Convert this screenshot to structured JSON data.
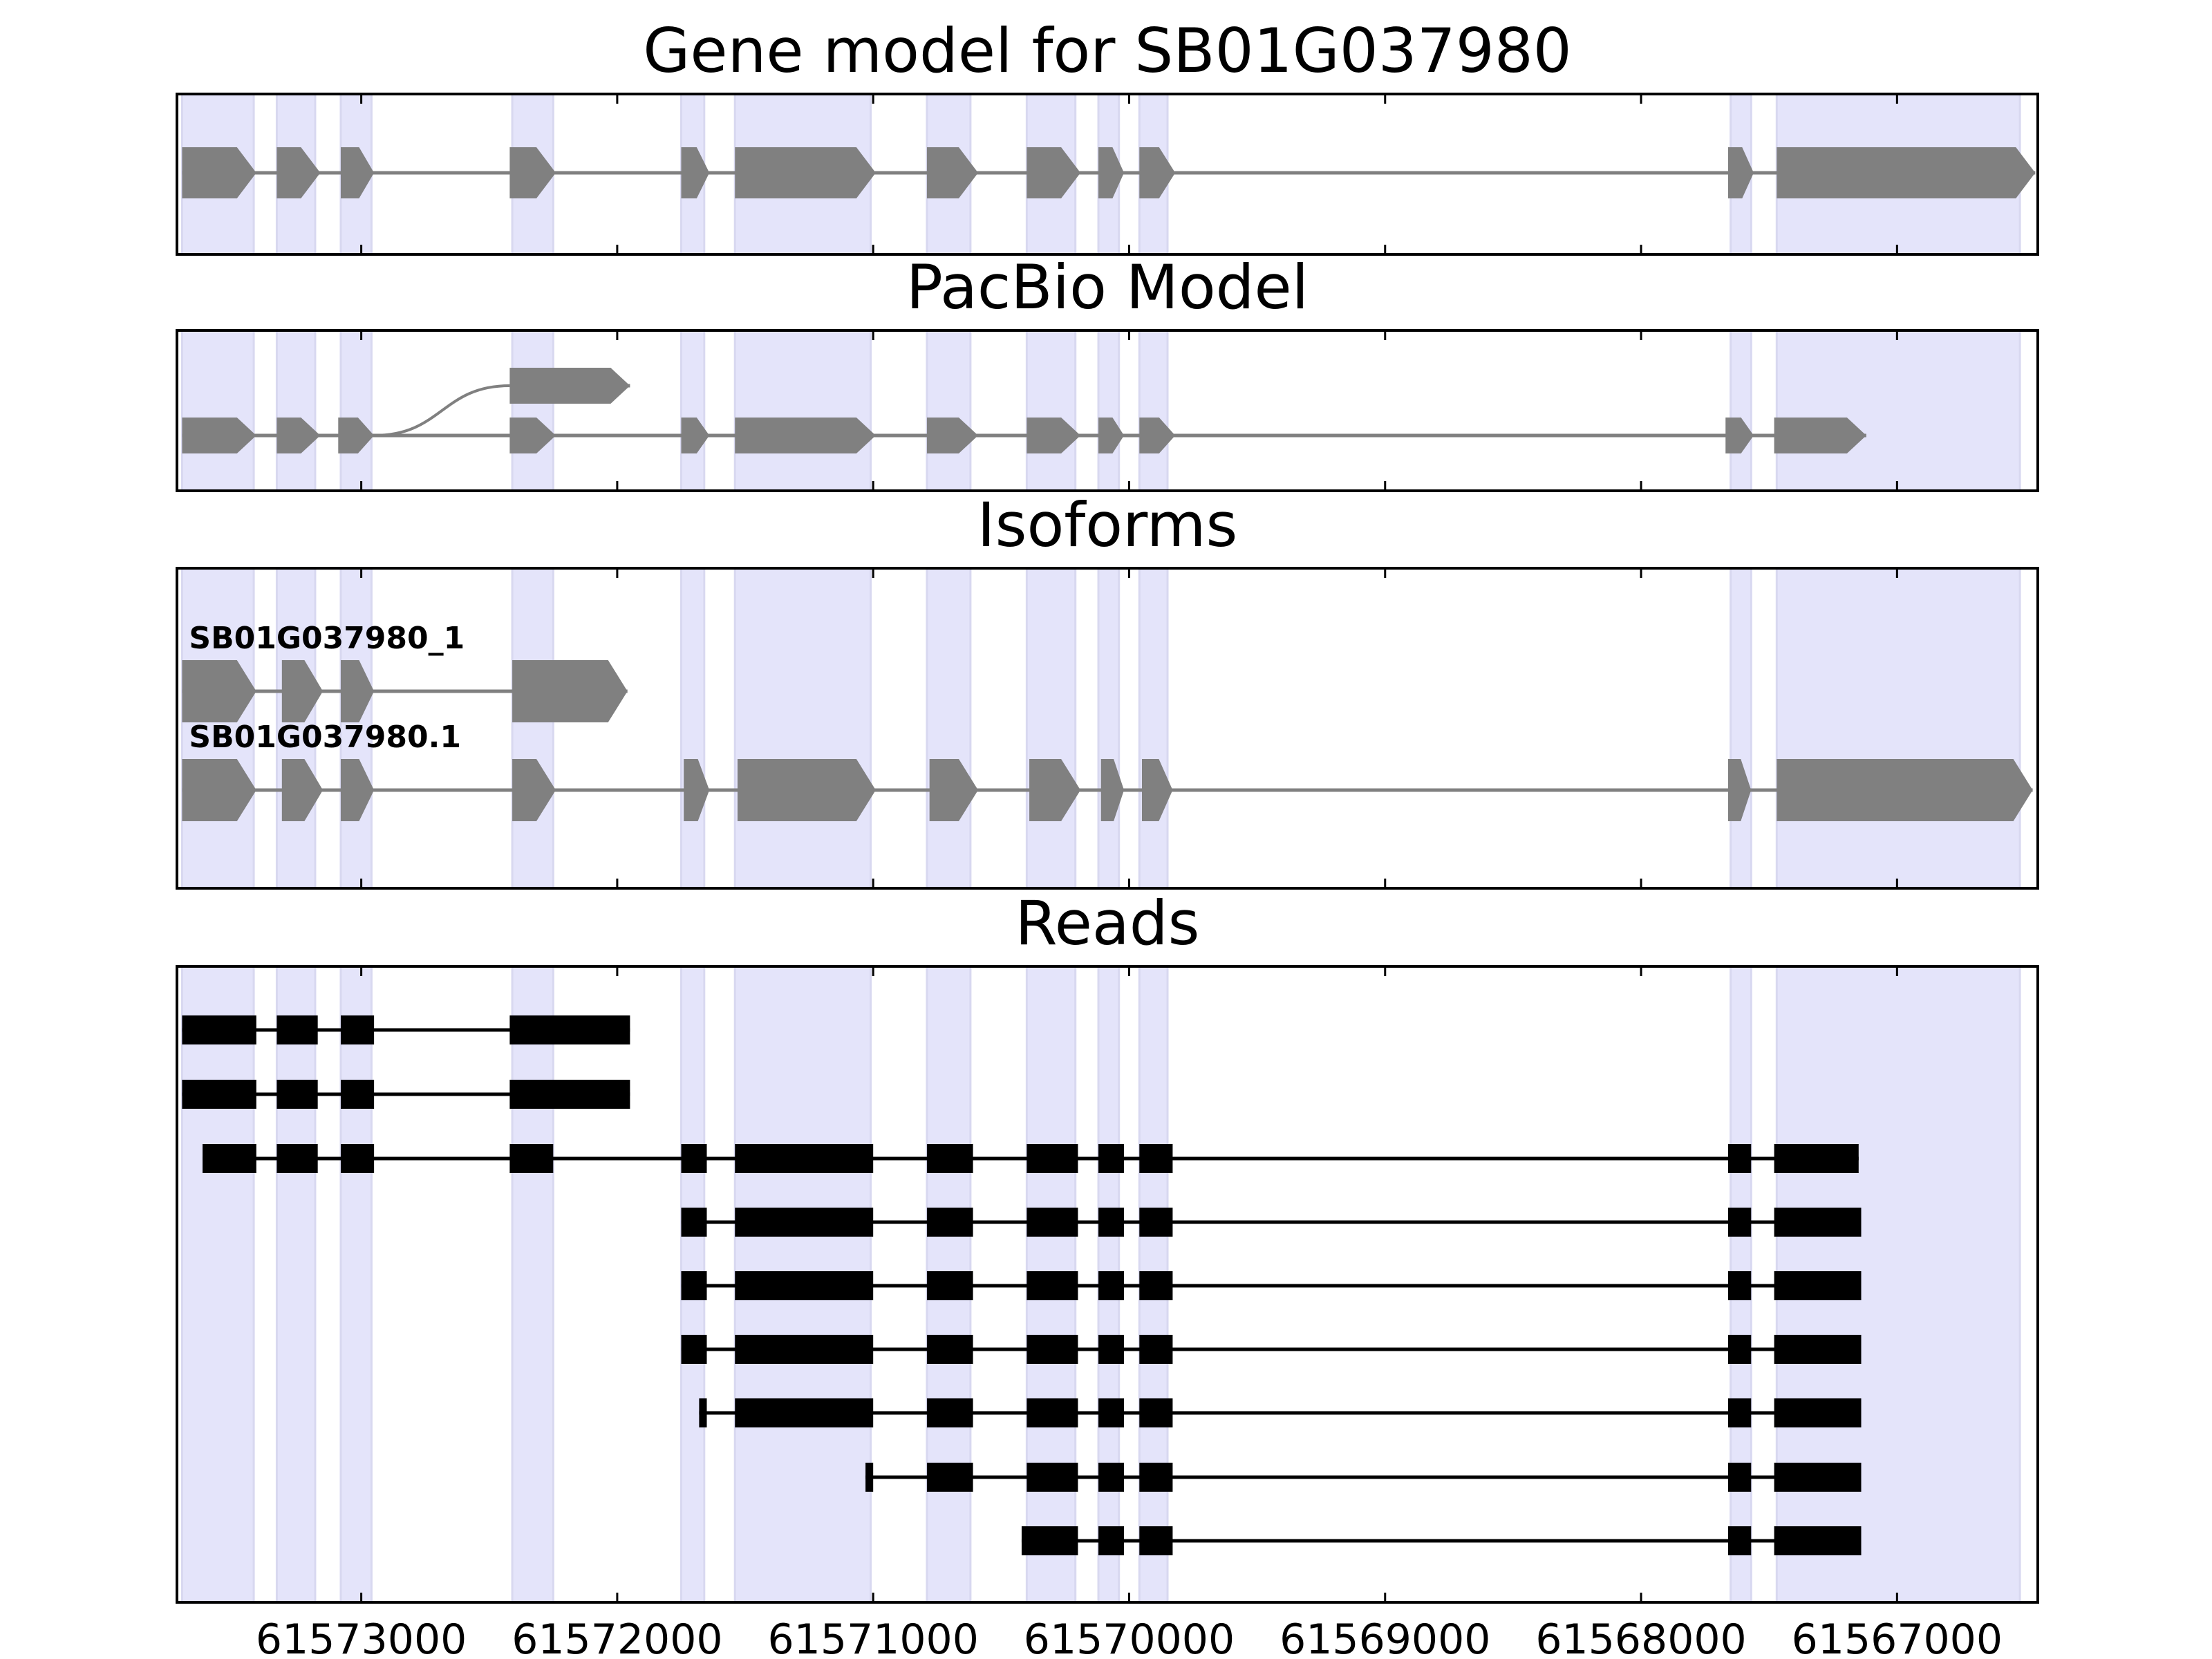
{
  "colors": {
    "exon_shade": "#e4e4fa",
    "exon_shade_edge": "#d8d8f0",
    "gene_model": "#808080",
    "read": "#000000",
    "axis": "#000000"
  },
  "chart_data": {
    "type": "gene-structure",
    "x_axis": {
      "orientation": "reversed",
      "xlim": [
        61573720,
        61566450
      ],
      "ticks": [
        61573000,
        61572000,
        61571000,
        61570000,
        61569000,
        61568000,
        61567000
      ],
      "tick_labels": [
        "61573000",
        "61572000",
        "61571000",
        "61570000",
        "61569000",
        "61568000",
        "61567000"
      ]
    },
    "shaded_exon_regions": [
      [
        61573700,
        61573420
      ],
      [
        61573330,
        61573180
      ],
      [
        61573080,
        61572960
      ],
      [
        61572410,
        61572250
      ],
      [
        61571750,
        61571660
      ],
      [
        61571540,
        61571010
      ],
      [
        61570790,
        61570620
      ],
      [
        61570400,
        61570210
      ],
      [
        61570120,
        61570040
      ],
      [
        61569960,
        61569850
      ],
      [
        61567650,
        61567570
      ],
      [
        61567470,
        61566520
      ]
    ],
    "panels": [
      {
        "title": "Gene model for SB01G037980",
        "kind": "model",
        "tracks": [
          {
            "label": "",
            "row": 0,
            "exons": [
              [
                61573700,
                61573410
              ],
              [
                61573330,
                61573160
              ],
              [
                61573080,
                61572950
              ],
              [
                61572420,
                61572240
              ],
              [
                61571750,
                61571640
              ],
              [
                61571540,
                61570990
              ],
              [
                61570790,
                61570590
              ],
              [
                61570400,
                61570190
              ],
              [
                61570120,
                61570020
              ],
              [
                61569960,
                61569820
              ],
              [
                61567660,
                61567560
              ],
              [
                61567470,
                61566460
              ]
            ]
          }
        ],
        "connectors": []
      },
      {
        "title": "PacBio Model",
        "kind": "model",
        "tracks": [
          {
            "label": "",
            "row": 0,
            "exons": [
              [
                61573700,
                61573410
              ],
              [
                61573330,
                61573160
              ],
              [
                61573090,
                61572950
              ],
              [
                61572420,
                61572240
              ],
              [
                61571750,
                61571640
              ],
              [
                61571540,
                61570990
              ],
              [
                61570790,
                61570590
              ],
              [
                61570400,
                61570190
              ],
              [
                61570120,
                61570020
              ],
              [
                61569960,
                61569820
              ],
              [
                61567670,
                61567560
              ],
              [
                61567480,
                61567120
              ]
            ]
          },
          {
            "label": "",
            "row": 1,
            "exons": [
              [
                61572420,
                61571950
              ]
            ]
          }
        ],
        "connectors": [
          {
            "from": 61572950,
            "to": 61572420,
            "from_row": 0,
            "to_row": 1
          }
        ]
      },
      {
        "title": "Isoforms",
        "kind": "model",
        "tracks": [
          {
            "label": "SB01G037980_1",
            "row": 1,
            "exons": [
              [
                61573700,
                61573410
              ],
              [
                61573310,
                61573150
              ],
              [
                61573080,
                61572950
              ],
              [
                61572410,
                61571960
              ]
            ]
          },
          {
            "label": "SB01G037980.1",
            "row": 0,
            "exons": [
              [
                61573700,
                61573410
              ],
              [
                61573310,
                61573150
              ],
              [
                61573080,
                61572950
              ],
              [
                61572410,
                61572240
              ],
              [
                61571740,
                61571640
              ],
              [
                61571530,
                61570990
              ],
              [
                61570780,
                61570590
              ],
              [
                61570390,
                61570190
              ],
              [
                61570110,
                61570020
              ],
              [
                61569950,
                61569830
              ],
              [
                61567660,
                61567570
              ],
              [
                61567470,
                61566470
              ]
            ]
          }
        ],
        "connectors": []
      },
      {
        "title": "Reads",
        "kind": "reads",
        "tracks": [
          {
            "row": 0,
            "exons": [
              [
                61573700,
                61573410
              ],
              [
                61573330,
                61573170
              ],
              [
                61573080,
                61572950
              ],
              [
                61572420,
                61571950
              ]
            ]
          },
          {
            "row": 1,
            "exons": [
              [
                61573700,
                61573410
              ],
              [
                61573330,
                61573170
              ],
              [
                61573080,
                61572950
              ],
              [
                61572420,
                61571950
              ]
            ]
          },
          {
            "row": 2,
            "exons": [
              [
                61573620,
                61573410
              ],
              [
                61573330,
                61573170
              ],
              [
                61573080,
                61572950
              ],
              [
                61572420,
                61572250
              ],
              [
                61571750,
                61571650
              ],
              [
                61571540,
                61571000
              ],
              [
                61570790,
                61570610
              ],
              [
                61570400,
                61570200
              ],
              [
                61570120,
                61570020
              ],
              [
                61569960,
                61569830
              ],
              [
                61567660,
                61567570
              ],
              [
                61567480,
                61567150
              ]
            ]
          },
          {
            "row": 3,
            "exons": [
              [
                61571750,
                61571650
              ],
              [
                61571540,
                61571000
              ],
              [
                61570790,
                61570610
              ],
              [
                61570400,
                61570200
              ],
              [
                61570120,
                61570020
              ],
              [
                61569960,
                61569830
              ],
              [
                61567660,
                61567570
              ],
              [
                61567480,
                61567140
              ]
            ]
          },
          {
            "row": 4,
            "exons": [
              [
                61571750,
                61571650
              ],
              [
                61571540,
                61571000
              ],
              [
                61570790,
                61570610
              ],
              [
                61570400,
                61570200
              ],
              [
                61570120,
                61570020
              ],
              [
                61569960,
                61569830
              ],
              [
                61567660,
                61567570
              ],
              [
                61567480,
                61567140
              ]
            ]
          },
          {
            "row": 5,
            "exons": [
              [
                61571750,
                61571650
              ],
              [
                61571540,
                61571000
              ],
              [
                61570790,
                61570610
              ],
              [
                61570400,
                61570200
              ],
              [
                61570120,
                61570020
              ],
              [
                61569960,
                61569830
              ],
              [
                61567660,
                61567570
              ],
              [
                61567480,
                61567140
              ]
            ]
          },
          {
            "row": 6,
            "exons": [
              [
                61571680,
                61571650
              ],
              [
                61571540,
                61571000
              ],
              [
                61570790,
                61570610
              ],
              [
                61570400,
                61570200
              ],
              [
                61570120,
                61570020
              ],
              [
                61569960,
                61569830
              ],
              [
                61567660,
                61567570
              ],
              [
                61567480,
                61567140
              ]
            ]
          },
          {
            "row": 7,
            "exons": [
              [
                61571030,
                61571000
              ],
              [
                61570790,
                61570610
              ],
              [
                61570400,
                61570200
              ],
              [
                61570120,
                61570020
              ],
              [
                61569960,
                61569830
              ],
              [
                61567660,
                61567570
              ],
              [
                61567480,
                61567140
              ]
            ]
          },
          {
            "row": 8,
            "exons": [
              [
                61570420,
                61570360
              ],
              [
                61570400,
                61570200
              ],
              [
                61570120,
                61570020
              ],
              [
                61569960,
                61569830
              ],
              [
                61567660,
                61567570
              ],
              [
                61567480,
                61567140
              ]
            ]
          }
        ],
        "connectors": []
      }
    ]
  }
}
